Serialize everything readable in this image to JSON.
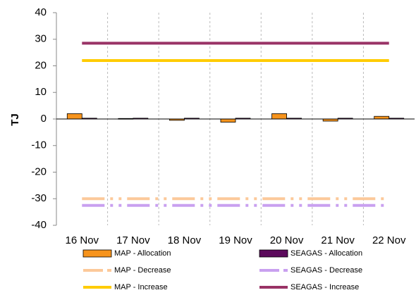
{
  "chart_data": {
    "type": "combo",
    "y_label": "TJ",
    "categories": [
      "16 Nov",
      "17 Nov",
      "18 Nov",
      "19 Nov",
      "20 Nov",
      "21 Nov",
      "22 Nov"
    ],
    "ylim": [
      -40,
      40
    ],
    "yticks": [
      -40,
      -30,
      -20,
      -10,
      0,
      10,
      20,
      30,
      40
    ],
    "grid": "vertical-dashed",
    "series": [
      {
        "name": "MAP - Allocation",
        "type": "bar",
        "color": "#f7941d",
        "values": [
          2,
          0.2,
          -0.5,
          -1.2,
          2,
          -0.8,
          1
        ]
      },
      {
        "name": "SEAGAS - Allocation",
        "type": "bar",
        "color": "#5c0a5c",
        "values": [
          0.3,
          0.3,
          0.3,
          0.3,
          0.3,
          0.3,
          0.3
        ]
      },
      {
        "name": "MAP - Decrease",
        "type": "line",
        "dashed": true,
        "color": "#fcc99a",
        "values": [
          -30,
          -30,
          -30,
          -30,
          -30,
          -30,
          -30
        ]
      },
      {
        "name": "SEAGAS - Decrease",
        "type": "line",
        "dashed": true,
        "color": "#c9a0f0",
        "values": [
          -32.5,
          -32.5,
          -32.5,
          -32.5,
          -32.5,
          -32.5,
          -32.5
        ]
      },
      {
        "name": "MAP - Increase",
        "type": "line",
        "dashed": false,
        "color": "#ffcc00",
        "values": [
          22,
          22,
          22,
          22,
          22,
          22,
          22
        ]
      },
      {
        "name": "SEAGAS - Increase",
        "type": "line",
        "dashed": false,
        "color": "#993366",
        "values": [
          28.5,
          28.5,
          28.5,
          28.5,
          28.5,
          28.5,
          28.5
        ]
      }
    ]
  }
}
